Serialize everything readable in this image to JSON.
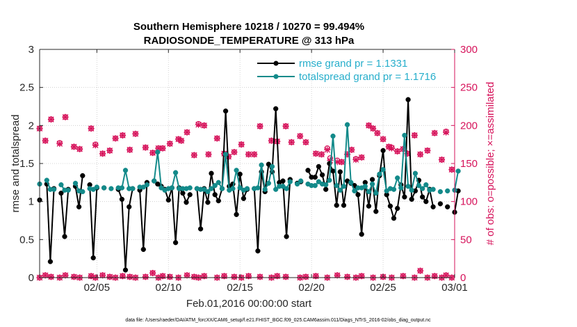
{
  "chart_data": {
    "type": "line",
    "title_line1": "Southern Hemisphere 10218 / 10270 = 99.494%",
    "title_line2": "RADIOSONDE_TEMPERATURE @ 313 hPa",
    "xlabel": "Feb.01,2016 00:00:00 start",
    "ylabel_left": "rmse and totalspread",
    "ylabel_right": "# of obs: o=possible; ×=assimilated",
    "footer": "data file: /Users/raeder/DAI/ATM_forcXX/CAM6_setup/f.e21.FHIST_BGC.f09_025.CAM6assim.011/Diags_NTrS_2016-02/obs_diag_output.nc",
    "xlim": [
      1,
      30
    ],
    "ylim_left": [
      0,
      3
    ],
    "ylim_right": [
      0,
      300
    ],
    "x_tick_values": [
      5,
      10,
      15,
      20,
      25,
      30
    ],
    "x_tick_labels": [
      "02/05",
      "02/10",
      "02/15",
      "02/20",
      "02/25",
      "03/01"
    ],
    "y_left_ticks": [
      "0",
      "0.5",
      "1",
      "1.5",
      "2",
      "2.5",
      "3"
    ],
    "y_right_ticks": [
      "0",
      "50",
      "100",
      "150",
      "200",
      "250",
      "300"
    ],
    "legend": {
      "rmse": "rmse grand pr = 1.1331",
      "spread": "totalspread grand pr = 1.1716"
    },
    "colors": {
      "rmse": "#000000",
      "spread": "#138a8a",
      "obs": "#d6125a",
      "legend_text": "#27aecb"
    },
    "x_step_days": 0.25,
    "rmse_segments": [
      {
        "start": 1.0,
        "values": [
          1.02,
          null,
          1.23,
          0.21,
          1.17,
          null,
          1.11,
          0.54,
          1.16,
          null,
          1.2,
          0.93,
          1.34,
          null,
          1.22,
          0.26,
          1.18,
          null,
          1.18,
          null,
          null,
          null,
          1.16,
          1.03,
          0.1,
          0.93,
          1.17,
          null,
          1.15,
          0.37,
          1.25,
          null,
          1.27,
          1.23,
          1.2,
          1.16,
          1.02,
          1.18,
          0.46,
          1.18,
          1.11,
          0.99,
          1.09,
          null,
          1.17,
          0.64,
          1.17,
          0.99,
          1.37,
          1.09,
          1.01,
          1.17,
          2.19,
          1.2,
          1.23,
          0.83,
          1.36,
          1.04,
          1.16,
          null,
          1.17,
          0.35,
          1.39,
          1.13,
          1.49,
          1.39,
          2.22,
          1.25,
          1.27,
          0.54,
          1.29,
          null,
          1.24,
          1.26
        ]
      },
      {
        "start": 19.75,
        "values": [
          1.41,
          1.32,
          1.32,
          1.46,
          1.35,
          1.16,
          1.5,
          1.4,
          0.95,
          1.39,
          0.95,
          1.27,
          1.24,
          1.21,
          1.09,
          0.57,
          1.25,
          0.94,
          1.29,
          0.87,
          1.34,
          1.67,
          1.09,
          0.94,
          0.78,
          0.91,
          1.22,
          1.06,
          2.34,
          1.03,
          1.14,
          1.28,
          1.06,
          1.0,
          1.16,
          0.93,
          null,
          0.97,
          null,
          0.93,
          null,
          0.86,
          1.14
        ]
      }
    ],
    "spread_segments": [
      {
        "start": 1.0,
        "values": [
          1.23,
          null,
          1.28,
          1.16,
          1.16,
          null,
          1.22,
          1.15,
          1.15,
          null,
          1.24,
          1.14,
          1.13,
          null,
          1.17,
          1.16,
          1.19,
          null,
          1.18,
          null,
          1.17,
          null,
          1.18,
          1.18,
          1.41,
          1.17,
          1.17,
          null,
          1.19,
          1.19,
          1.22,
          null,
          1.27,
          1.65,
          1.18,
          1.15,
          1.17,
          1.18,
          1.38,
          1.17,
          1.17,
          1.17,
          1.18,
          null,
          1.17,
          1.16,
          1.16,
          1.13,
          1.17,
          1.21,
          1.25,
          1.17,
          1.62,
          1.15,
          1.17,
          1.41,
          1.18,
          1.15,
          1.17,
          null,
          1.17,
          1.18,
          1.48,
          1.16,
          1.24,
          1.46,
          1.16,
          1.2,
          1.2,
          1.17,
          1.26,
          null,
          1.23,
          1.27
        ]
      },
      {
        "start": 19.75,
        "values": [
          1.23,
          1.21,
          1.21,
          1.26,
          1.23,
          1.22,
          1.28,
          1.86,
          1.21,
          1.15,
          1.2,
          2.01,
          1.25,
          1.14,
          1.18,
          1.18,
          1.2,
          1.13,
          1.23,
          1.11,
          1.36,
          1.42,
          1.14,
          1.17,
          1.16,
          1.31,
          1.18,
          1.87,
          1.2,
          1.15,
          1.37,
          1.21,
          1.17,
          1.22,
          1.15,
          1.16,
          null,
          1.13,
          null,
          1.14,
          null,
          1.15,
          1.4
        ]
      }
    ],
    "obs_possible": [
      [
        1.0,
        196
      ],
      [
        1.4,
        180
      ],
      [
        1.8,
        208
      ],
      [
        2.4,
        177
      ],
      [
        2.8,
        211
      ],
      [
        3.4,
        172
      ],
      [
        3.8,
        169
      ],
      [
        4.6,
        196
      ],
      [
        4.9,
        175
      ],
      [
        5.4,
        163
      ],
      [
        5.9,
        167
      ],
      [
        6.3,
        183
      ],
      [
        6.8,
        187
      ],
      [
        7.3,
        168
      ],
      [
        7.7,
        189
      ],
      [
        8.4,
        171
      ],
      [
        8.9,
        164
      ],
      [
        9.3,
        170
      ],
      [
        9.6,
        170
      ],
      [
        10.1,
        176
      ],
      [
        10.7,
        182
      ],
      [
        10.9,
        180
      ],
      [
        11.3,
        191
      ],
      [
        11.8,
        161
      ],
      [
        12.1,
        202
      ],
      [
        12.5,
        200
      ],
      [
        12.8,
        162
      ],
      [
        13.4,
        183
      ],
      [
        13.9,
        163
      ],
      [
        14.2,
        159
      ],
      [
        14.6,
        165
      ],
      [
        15.1,
        175
      ],
      [
        15.6,
        162
      ],
      [
        16.0,
        162
      ],
      [
        16.4,
        199
      ],
      [
        17.2,
        180
      ],
      [
        17.6,
        179
      ],
      [
        18.2,
        199
      ],
      [
        18.6,
        178
      ],
      [
        19.2,
        186
      ],
      [
        19.6,
        178
      ],
      [
        20.3,
        163
      ],
      [
        20.7,
        162
      ],
      [
        21.1,
        170
      ],
      [
        21.3,
        157
      ],
      [
        21.8,
        154
      ],
      [
        22.1,
        152
      ],
      [
        22.5,
        162
      ],
      [
        22.8,
        168
      ],
      [
        23.1,
        156
      ],
      [
        23.5,
        158
      ],
      [
        24.0,
        200
      ],
      [
        24.3,
        196
      ],
      [
        24.6,
        190
      ],
      [
        25.0,
        182
      ],
      [
        25.4,
        172
      ],
      [
        25.6,
        171
      ],
      [
        26.0,
        166
      ],
      [
        26.4,
        169
      ],
      [
        26.7,
        163
      ],
      [
        27.2,
        187
      ],
      [
        27.6,
        162
      ],
      [
        28.1,
        167
      ],
      [
        28.6,
        190
      ],
      [
        29.1,
        155
      ],
      [
        29.4,
        192
      ],
      [
        29.8,
        142
      ]
    ],
    "obs_assimilated": [
      [
        1.0,
        196
      ],
      [
        1.4,
        180
      ],
      [
        1.8,
        208
      ],
      [
        2.4,
        176
      ],
      [
        2.8,
        211
      ],
      [
        3.4,
        172
      ],
      [
        3.8,
        169
      ],
      [
        4.6,
        196
      ],
      [
        4.9,
        174
      ],
      [
        5.4,
        163
      ],
      [
        5.9,
        167
      ],
      [
        6.3,
        183
      ],
      [
        6.8,
        187
      ],
      [
        7.3,
        168
      ],
      [
        7.7,
        189
      ],
      [
        8.4,
        171
      ],
      [
        8.9,
        164
      ],
      [
        9.3,
        170
      ],
      [
        9.6,
        170
      ],
      [
        10.1,
        176
      ],
      [
        10.7,
        182
      ],
      [
        10.9,
        180
      ],
      [
        11.3,
        191
      ],
      [
        11.8,
        161
      ],
      [
        12.1,
        201
      ],
      [
        12.5,
        200
      ],
      [
        12.8,
        162
      ],
      [
        13.4,
        183
      ],
      [
        13.9,
        163
      ],
      [
        14.2,
        159
      ],
      [
        14.6,
        165
      ],
      [
        15.1,
        175
      ],
      [
        15.6,
        162
      ],
      [
        16.0,
        162
      ],
      [
        16.4,
        199
      ],
      [
        17.2,
        180
      ],
      [
        17.6,
        179
      ],
      [
        18.2,
        199
      ],
      [
        18.6,
        178
      ],
      [
        19.2,
        186
      ],
      [
        19.6,
        178
      ],
      [
        20.3,
        163
      ],
      [
        20.7,
        162
      ],
      [
        21.1,
        168
      ],
      [
        21.3,
        154
      ],
      [
        21.8,
        152
      ],
      [
        22.1,
        152
      ],
      [
        22.5,
        162
      ],
      [
        22.8,
        168
      ],
      [
        23.1,
        155
      ],
      [
        23.5,
        158
      ],
      [
        24.0,
        200
      ],
      [
        24.3,
        196
      ],
      [
        24.6,
        190
      ],
      [
        25.0,
        182
      ],
      [
        25.4,
        172
      ],
      [
        25.6,
        170
      ],
      [
        26.0,
        166
      ],
      [
        26.4,
        169
      ],
      [
        26.7,
        163
      ],
      [
        27.2,
        187
      ],
      [
        27.6,
        162
      ],
      [
        28.1,
        167
      ],
      [
        28.6,
        190
      ],
      [
        29.1,
        155
      ],
      [
        29.4,
        191
      ],
      [
        29.8,
        142
      ]
    ],
    "obs_low": [
      [
        1.0,
        0
      ],
      [
        1.4,
        3
      ],
      [
        1.8,
        1
      ],
      [
        2.4,
        0
      ],
      [
        2.8,
        3
      ],
      [
        3.4,
        1
      ],
      [
        3.8,
        0
      ],
      [
        4.6,
        2
      ],
      [
        4.9,
        0
      ],
      [
        5.4,
        3
      ],
      [
        5.9,
        1
      ],
      [
        6.3,
        0
      ],
      [
        6.8,
        2
      ],
      [
        7.3,
        1
      ],
      [
        7.7,
        0
      ],
      [
        8.4,
        1
      ],
      [
        8.9,
        6
      ],
      [
        9.3,
        0
      ],
      [
        9.6,
        2
      ],
      [
        10.1,
        1
      ],
      [
        10.7,
        0
      ],
      [
        11.3,
        3
      ],
      [
        11.8,
        1
      ],
      [
        12.1,
        0
      ],
      [
        12.5,
        2
      ],
      [
        13.4,
        0
      ],
      [
        13.9,
        2
      ],
      [
        14.6,
        1
      ],
      [
        15.1,
        0
      ],
      [
        15.6,
        2
      ],
      [
        16.4,
        1
      ],
      [
        17.2,
        0
      ],
      [
        17.6,
        2
      ],
      [
        18.2,
        1
      ],
      [
        19.2,
        0
      ],
      [
        19.6,
        1
      ],
      [
        20.3,
        2
      ],
      [
        21.1,
        0
      ],
      [
        21.8,
        3
      ],
      [
        22.5,
        1
      ],
      [
        23.1,
        0
      ],
      [
        23.5,
        2
      ],
      [
        24.3,
        0
      ],
      [
        25.0,
        1
      ],
      [
        25.6,
        0
      ],
      [
        26.4,
        2
      ],
      [
        27.2,
        0
      ],
      [
        27.6,
        9
      ],
      [
        28.1,
        0
      ],
      [
        28.6,
        2
      ],
      [
        29.1,
        0
      ],
      [
        29.4,
        3
      ],
      [
        29.8,
        0
      ]
    ]
  }
}
